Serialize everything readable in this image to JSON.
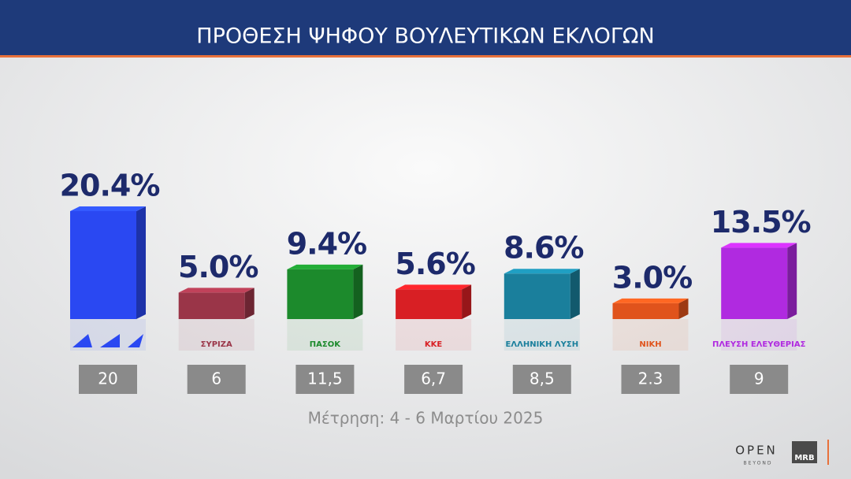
{
  "chart_data": {
    "type": "bar",
    "title": "ΠΡΟΘΕΣΗ ΨΗΦΟΥ ΒΟΥΛΕΥΤΙΚΩΝ ΕΚΛΟΓΩΝ",
    "subtitle": "Μέτρηση: 4 - 6 Μαρτίου 2025",
    "categories": [
      null,
      "ΣΥΡΙΖΑ",
      "ΠΑΣΟΚ",
      "ΚΚΕ",
      "ΕΛΛΗΝΙΚΗ ΛΥΣΗ",
      "ΝΙΚΗ",
      "ΠΛΕΥΣΗ ΕΛΕΥΘΕΡΙΑΣ"
    ],
    "values": [
      20.4,
      5.0,
      9.4,
      5.6,
      8.6,
      3.0,
      13.5
    ],
    "value_labels": [
      "20.4%",
      "5.0%",
      "9.4%",
      "5.6%",
      "8.6%",
      "3.0%",
      "13.5%"
    ],
    "colors": [
      "#2a48f2",
      "#9a3548",
      "#1c8a2c",
      "#d81f24",
      "#1a7f9c",
      "#e0531c",
      "#b02ae0"
    ],
    "previous_labels": [
      "20",
      "6",
      "11,5",
      "6,7",
      "8,5",
      "2.3",
      "9"
    ],
    "brand": {
      "channel": "OPEN",
      "tagline": "BEYOND",
      "pollster": "MRB"
    }
  }
}
